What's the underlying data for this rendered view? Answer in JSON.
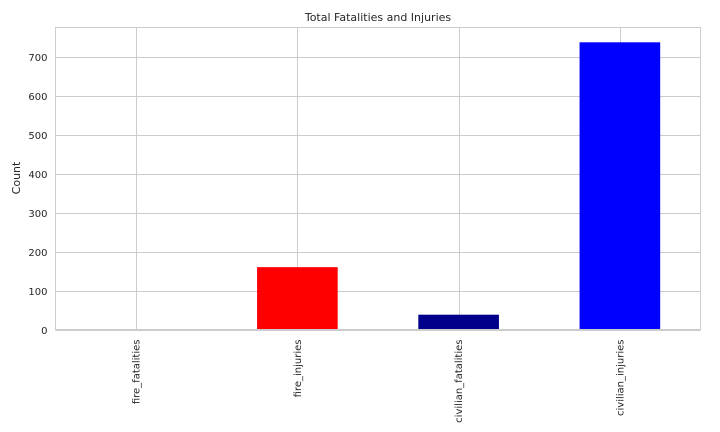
{
  "chart_data": {
    "type": "bar",
    "title": "Total Fatalities and Injuries",
    "xlabel": "",
    "ylabel": "Count",
    "categories": [
      "fire_fatalities",
      "fire_injuries",
      "civilian_fatalities",
      "civilian_injuries"
    ],
    "values": [
      1,
      160,
      38,
      737
    ],
    "colors": [
      "#000000",
      "#ff0000",
      "#00008b",
      "#0000ff"
    ],
    "ylim": [
      0,
      775
    ],
    "yticks": [
      0,
      100,
      200,
      300,
      400,
      500,
      600,
      700
    ],
    "grid": true,
    "legend": "none"
  }
}
